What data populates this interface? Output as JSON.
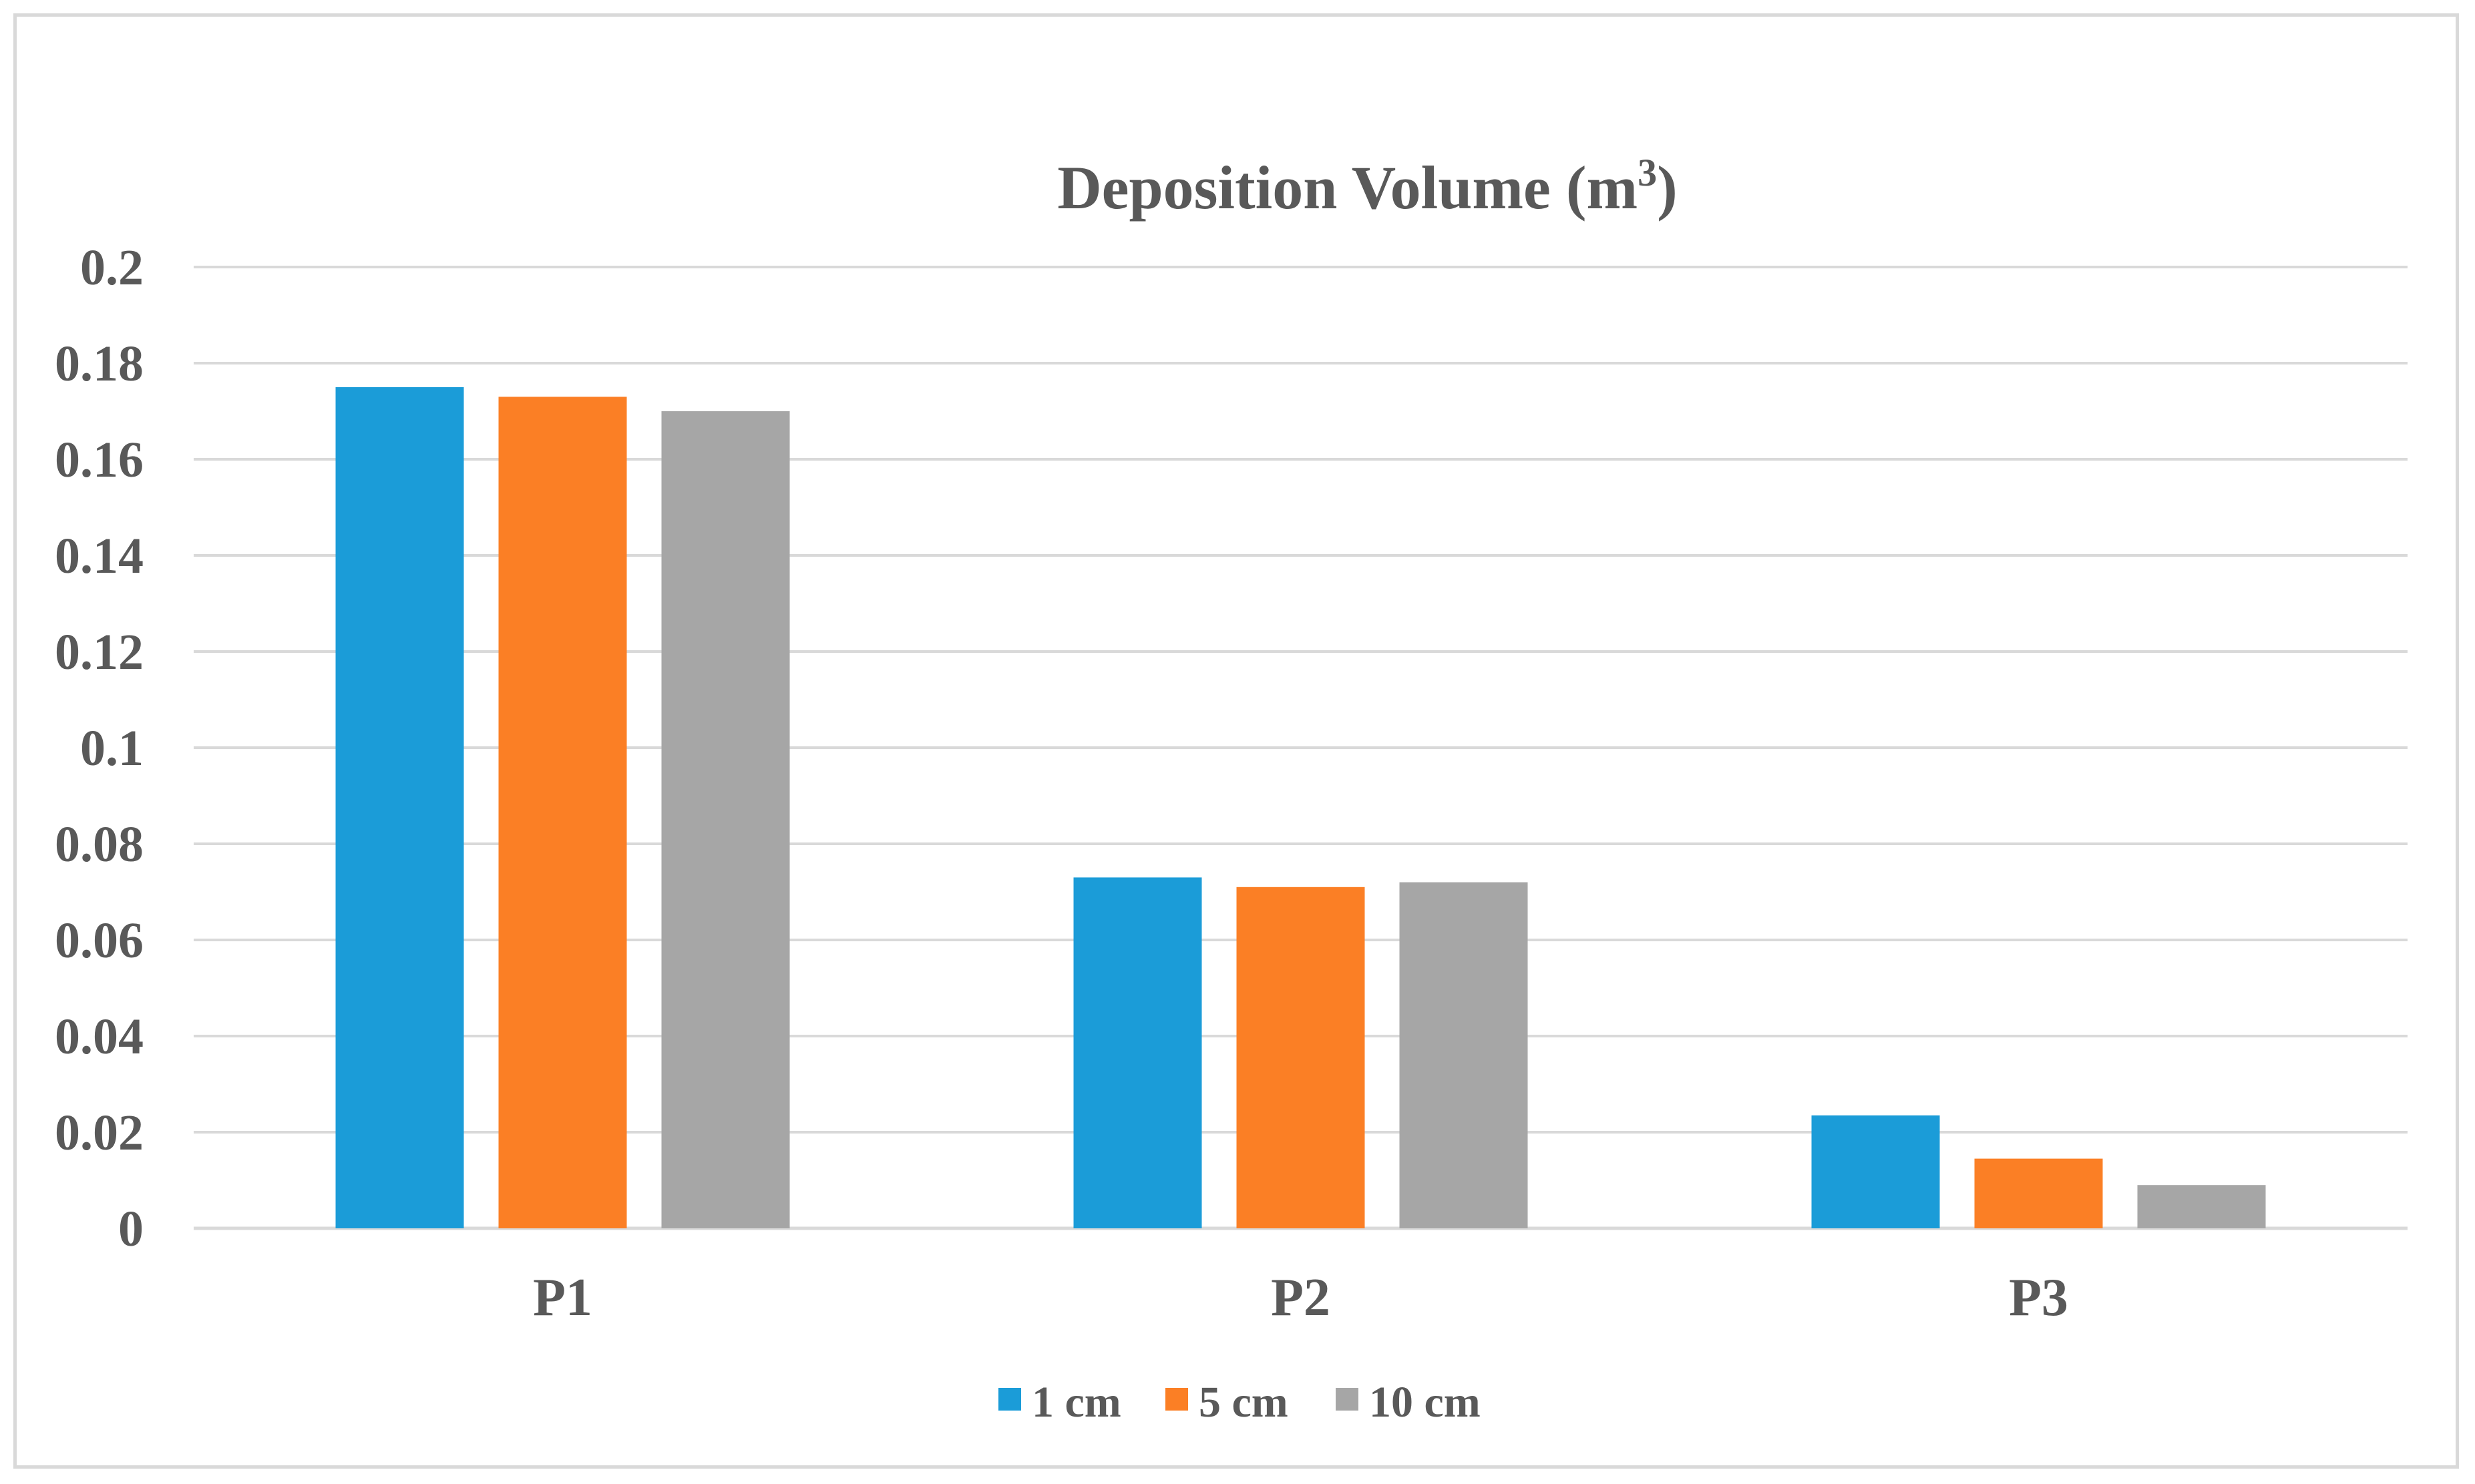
{
  "chart_data": {
    "type": "bar",
    "title": "Deposition Volume (m",
    "title_superscript": "3",
    "title_suffix": ")",
    "xlabel": "",
    "ylabel": "",
    "categories": [
      "P1",
      "P2",
      "P3"
    ],
    "series": [
      {
        "name": "1 cm",
        "color": "#1b9cd8",
        "values": [
          0.175,
          0.073,
          0.0235
        ]
      },
      {
        "name": "5 cm",
        "color": "#fb7f25",
        "values": [
          0.173,
          0.071,
          0.0145
        ]
      },
      {
        "name": "10 cm",
        "color": "#a6a6a6",
        "values": [
          0.17,
          0.072,
          0.009
        ]
      }
    ],
    "ylim": [
      0,
      0.2
    ],
    "yticks": [
      "0",
      "0.02",
      "0.04",
      "0.06",
      "0.08",
      "0.1",
      "0.12",
      "0.14",
      "0.16",
      "0.18",
      "0.2"
    ],
    "grid": true,
    "legend_position": "bottom"
  }
}
